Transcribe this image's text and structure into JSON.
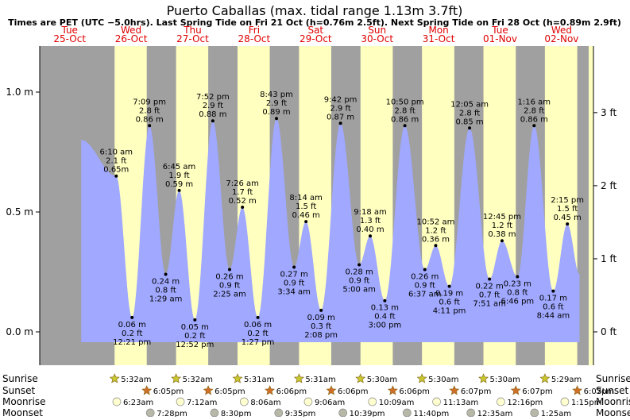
{
  "title": "Puerto Caballas (max. tidal range 1.13m 3.7ft)",
  "subtitle": "Times are PET (UTC −5.0hrs). Last Spring Tide on Fri 21 Oct (h=0.76m 2.5ft). Next Spring Tide on Fri 28 Oct (h=0.89m 2.9ft)",
  "colors": {
    "night": "#a0a0a0",
    "day": "#ffffc0",
    "tide": "#a0a8ff",
    "day_label": "#e00000",
    "weekend_label": "#e00000",
    "sun": "#c8c830",
    "sunset": "#d07028",
    "moonrise": "#ffffd0",
    "moonset": "#b8b8a8"
  },
  "chart_data": {
    "type": "area",
    "title": "Puerto Caballas (max. tidal range 1.13m 3.7ft)",
    "ylim_m": [
      -0.1,
      1.2
    ],
    "yticks_m": [
      "0.0 m",
      "0.5 m",
      "1.0 m"
    ],
    "yticks_ft": [
      "0 ft",
      "1 ft",
      "2 ft",
      "3 ft"
    ],
    "days": [
      {
        "dow": "Tue",
        "date": "25-Oct"
      },
      {
        "dow": "Wed",
        "date": "26-Oct"
      },
      {
        "dow": "Thu",
        "date": "27-Oct"
      },
      {
        "dow": "Fri",
        "date": "28-Oct"
      },
      {
        "dow": "Sat",
        "date": "29-Oct"
      },
      {
        "dow": "Sun",
        "date": "30-Oct"
      },
      {
        "dow": "Mon",
        "date": "31-Oct"
      },
      {
        "dow": "Tue",
        "date": "01-Nov"
      },
      {
        "dow": "Wed",
        "date": "02-Nov"
      }
    ],
    "tides": [
      {
        "day": 1,
        "time": "6:10 am",
        "hour": 6.17,
        "ft": "2.1 ft",
        "m": 0.65,
        "label": "0.65m",
        "high": true
      },
      {
        "day": 1,
        "time": "12:21 pm",
        "hour": 12.35,
        "ft": "0.2 ft",
        "m": 0.06,
        "label": "0.06 m",
        "high": false
      },
      {
        "day": 1,
        "time": "7:09 pm",
        "hour": 19.15,
        "ft": "2.8 ft",
        "m": 0.86,
        "label": "0.86 m",
        "high": true
      },
      {
        "day": 2,
        "time": "1:29 am",
        "hour": 1.48,
        "ft": "0.8 ft",
        "m": 0.24,
        "label": "0.24 m",
        "high": false
      },
      {
        "day": 2,
        "time": "6:45 am",
        "hour": 6.75,
        "ft": "1.9 ft",
        "m": 0.59,
        "label": "0.59 m",
        "high": true
      },
      {
        "day": 2,
        "time": "12:52 pm",
        "hour": 12.87,
        "ft": "0.2 ft",
        "m": 0.05,
        "label": "0.05 m",
        "high": false
      },
      {
        "day": 2,
        "time": "7:52 pm",
        "hour": 19.87,
        "ft": "2.9 ft",
        "m": 0.88,
        "label": "0.88 m",
        "high": true
      },
      {
        "day": 3,
        "time": "2:25 am",
        "hour": 2.42,
        "ft": "0.9 ft",
        "m": 0.26,
        "label": "0.26 m",
        "high": false
      },
      {
        "day": 3,
        "time": "7:26 am",
        "hour": 7.43,
        "ft": "1.7 ft",
        "m": 0.52,
        "label": "0.52 m",
        "high": true
      },
      {
        "day": 3,
        "time": "1:27 pm",
        "hour": 13.45,
        "ft": "0.2 ft",
        "m": 0.06,
        "label": "0.06 m",
        "high": false
      },
      {
        "day": 3,
        "time": "8:43 pm",
        "hour": 20.72,
        "ft": "2.9 ft",
        "m": 0.89,
        "label": "0.89 m",
        "high": true
      },
      {
        "day": 4,
        "time": "3:34 am",
        "hour": 3.57,
        "ft": "0.9 ft",
        "m": 0.27,
        "label": "0.27 m",
        "high": false
      },
      {
        "day": 4,
        "time": "8:14 am",
        "hour": 8.23,
        "ft": "1.5 ft",
        "m": 0.46,
        "label": "0.46 m",
        "high": true
      },
      {
        "day": 4,
        "time": "2:08 pm",
        "hour": 14.13,
        "ft": "0.3 ft",
        "m": 0.09,
        "label": "0.09 m",
        "high": false
      },
      {
        "day": 4,
        "time": "9:42 pm",
        "hour": 21.7,
        "ft": "2.9 ft",
        "m": 0.87,
        "label": "0.87 m",
        "high": true
      },
      {
        "day": 5,
        "time": "5:00 am",
        "hour": 5.0,
        "ft": "0.9 ft",
        "m": 0.28,
        "label": "0.28 m",
        "high": false
      },
      {
        "day": 5,
        "time": "9:18 am",
        "hour": 9.3,
        "ft": "1.3 ft",
        "m": 0.4,
        "label": "0.40 m",
        "high": true
      },
      {
        "day": 5,
        "time": "3:00 pm",
        "hour": 15.0,
        "ft": "0.4 ft",
        "m": 0.13,
        "label": "0.13 m",
        "high": false
      },
      {
        "day": 5,
        "time": "10:50 pm",
        "hour": 22.83,
        "ft": "2.8 ft",
        "m": 0.86,
        "label": "0.86 m",
        "high": true
      },
      {
        "day": 6,
        "time": "6:37 am",
        "hour": 6.62,
        "ft": "0.9 ft",
        "m": 0.26,
        "label": "0.26 m",
        "high": false
      },
      {
        "day": 6,
        "time": "10:52 am",
        "hour": 10.87,
        "ft": "1.2 ft",
        "m": 0.36,
        "label": "0.36 m",
        "high": true
      },
      {
        "day": 6,
        "time": "4:11 pm",
        "hour": 16.18,
        "ft": "0.6 ft",
        "m": 0.19,
        "label": "0.19 m",
        "high": false
      },
      {
        "day": 7,
        "time": "12:05 am",
        "hour": 0.08,
        "ft": "2.8 ft",
        "m": 0.85,
        "label": "0.85 m",
        "high": true
      },
      {
        "day": 7,
        "time": "7:51 am",
        "hour": 7.85,
        "ft": "0.7 ft",
        "m": 0.22,
        "label": "0.22 m",
        "high": false
      },
      {
        "day": 7,
        "time": "12:45 pm",
        "hour": 12.75,
        "ft": "1.2 ft",
        "m": 0.38,
        "label": "0.38 m",
        "high": true
      },
      {
        "day": 7,
        "time": "6:46 pm",
        "hour": 18.77,
        "ft": "0.8 ft",
        "m": 0.23,
        "label": "0.23 m",
        "high": false
      },
      {
        "day": 8,
        "time": "1:16 am",
        "hour": 1.27,
        "ft": "2.8 ft",
        "m": 0.86,
        "label": "0.86 m",
        "high": true
      },
      {
        "day": 8,
        "time": "8:44 am",
        "hour": 8.73,
        "ft": "0.6 ft",
        "m": 0.17,
        "label": "0.17 m",
        "high": false
      },
      {
        "day": 8,
        "time": "2:15 pm",
        "hour": 14.25,
        "ft": "1.5 ft",
        "m": 0.45,
        "label": "0.45 m",
        "high": true
      }
    ],
    "tide_start": {
      "day": 0,
      "hour": 16.5,
      "m": 0.8
    },
    "tide_end": {
      "day": 8,
      "hour": 19.0,
      "m": 0.24
    },
    "daylight": [
      {
        "day": 1,
        "rise": 5.53,
        "set": 18.08
      },
      {
        "day": 2,
        "rise": 5.53,
        "set": 18.08
      },
      {
        "day": 3,
        "rise": 5.52,
        "set": 18.1
      },
      {
        "day": 4,
        "rise": 5.52,
        "set": 18.1
      },
      {
        "day": 5,
        "rise": 5.5,
        "set": 18.1
      },
      {
        "day": 6,
        "rise": 5.5,
        "set": 18.12
      },
      {
        "day": 7,
        "rise": 5.5,
        "set": 18.12
      },
      {
        "day": 8,
        "rise": 5.48,
        "set": 18.12
      }
    ]
  },
  "events": {
    "labels": {
      "sunrise": "Sunrise",
      "sunset": "Sunset",
      "moonrise": "Moonrise",
      "moonset": "Moonset"
    },
    "sunrise": [
      {
        "day": 1,
        "hour": 5.53,
        "text": "5:32am"
      },
      {
        "day": 2,
        "hour": 5.53,
        "text": "5:32am"
      },
      {
        "day": 3,
        "hour": 5.52,
        "text": "5:31am"
      },
      {
        "day": 4,
        "hour": 5.52,
        "text": "5:31am"
      },
      {
        "day": 5,
        "hour": 5.5,
        "text": "5:30am"
      },
      {
        "day": 6,
        "hour": 5.5,
        "text": "5:30am"
      },
      {
        "day": 7,
        "hour": 5.5,
        "text": "5:30am"
      },
      {
        "day": 8,
        "hour": 5.48,
        "text": "5:29am"
      }
    ],
    "sunset": [
      {
        "day": 1,
        "hour": 18.08,
        "text": "6:05pm"
      },
      {
        "day": 2,
        "hour": 18.08,
        "text": "6:05pm"
      },
      {
        "day": 3,
        "hour": 18.1,
        "text": "6:06pm"
      },
      {
        "day": 4,
        "hour": 18.1,
        "text": "6:06pm"
      },
      {
        "day": 5,
        "hour": 18.1,
        "text": "6:06pm"
      },
      {
        "day": 6,
        "hour": 18.12,
        "text": "6:07pm"
      },
      {
        "day": 7,
        "hour": 18.12,
        "text": "6:07pm"
      },
      {
        "day": 8,
        "hour": 18.12,
        "text": "6:07pm"
      }
    ],
    "moonrise": [
      {
        "day": 1,
        "hour": 6.38,
        "text": "6:23am"
      },
      {
        "day": 2,
        "hour": 7.2,
        "text": "7:12am"
      },
      {
        "day": 3,
        "hour": 8.1,
        "text": "8:06am"
      },
      {
        "day": 4,
        "hour": 9.1,
        "text": "9:06am"
      },
      {
        "day": 5,
        "hour": 10.15,
        "text": "10:09am"
      },
      {
        "day": 6,
        "hour": 11.22,
        "text": "11:13am"
      },
      {
        "day": 7,
        "hour": 12.27,
        "text": "12:16pm"
      },
      {
        "day": 8,
        "hour": 13.25,
        "text": "1:15pm"
      }
    ],
    "moonset": [
      {
        "day": 1,
        "hour": 19.47,
        "text": "7:28pm"
      },
      {
        "day": 2,
        "hour": 20.5,
        "text": "8:30pm"
      },
      {
        "day": 3,
        "hour": 21.58,
        "text": "9:35pm"
      },
      {
        "day": 4,
        "hour": 22.65,
        "text": "10:39pm"
      },
      {
        "day": 5,
        "hour": 23.67,
        "text": "11:40pm"
      },
      {
        "day": 7,
        "hour": 0.58,
        "text": "12:35am"
      },
      {
        "day": 8,
        "hour": 1.42,
        "text": "1:25am"
      }
    ]
  }
}
